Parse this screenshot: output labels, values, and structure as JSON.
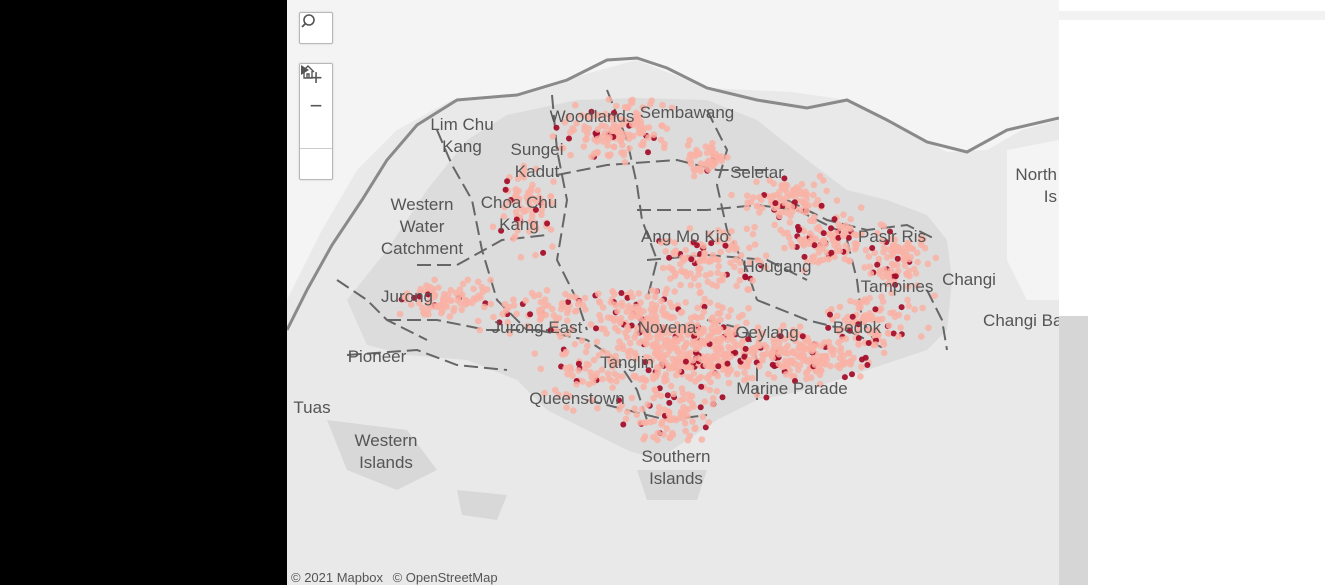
{
  "map": {
    "places": [
      "Lim Chu\nKang",
      "Sungei\nKadut",
      "Woodlands",
      "Sembawang",
      "Seletar",
      "Western\nWater\nCatchment",
      "Choa Chu\nKang",
      "Ang Mo Kio",
      "Hougang",
      "Pasir Ris",
      "Tampines",
      "Changi",
      "Changi Bay",
      "North\nIs",
      "Jurong",
      "Jurong East",
      "Novena",
      "Geylang",
      "Bedok",
      "Pioneer",
      "Tanglin",
      "Queenstown",
      "Marine Parade",
      "Tuas",
      "Western\nIslands",
      "Southern\nIslands"
    ],
    "dot_colors": {
      "light": "#f9b1a4",
      "dark": "#a50f2b"
    }
  },
  "controls": {
    "search_icon": "search-icon",
    "zoom_in": "+",
    "zoom_out": "−",
    "home_icon": "home-icon",
    "pan_icon": "play-icon"
  },
  "attribution": {
    "mapbox": "© 2021 Mapbox",
    "osm": "© OpenStreetMap"
  }
}
